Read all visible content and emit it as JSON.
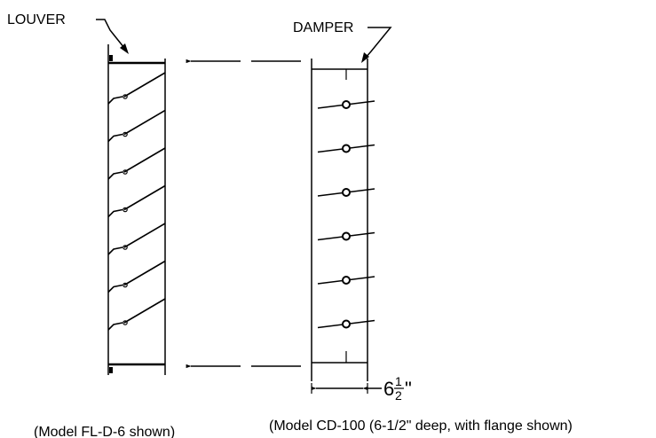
{
  "labels": {
    "louver": "LOUVER",
    "damper": "DAMPER"
  },
  "dimension": {
    "whole": "6",
    "num": "1",
    "den": "2",
    "unit": "\""
  },
  "captions": {
    "louver": "(Model FL-D-6 shown)",
    "damper": "(Model CD-100 (6-1/2\" deep, with flange shown)"
  },
  "counts": {
    "louver_blades": 7,
    "damper_blades": 6
  }
}
